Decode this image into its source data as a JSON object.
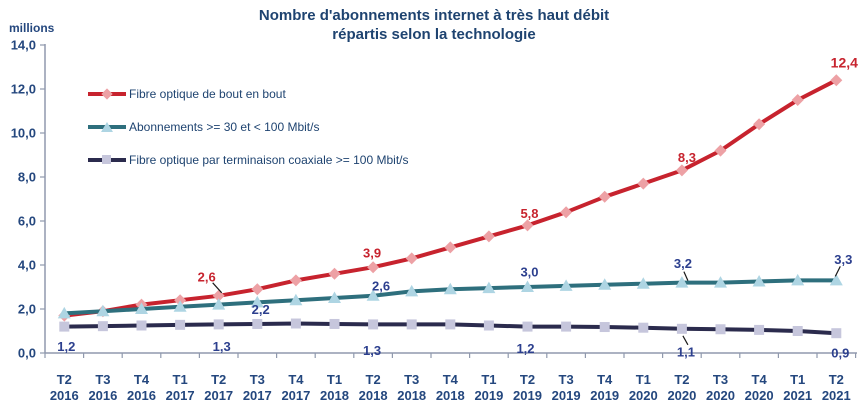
{
  "page": {
    "background": "#ffffff"
  },
  "chart_data": {
    "type": "line",
    "title": "Nombre d'abonnements internet à très haut débit\nrépartis selon la technologie",
    "title_color": "#1e4370",
    "axis_color": "#9099ad",
    "tick_label_color": "#24477e",
    "legend_text_color": "#1e4370",
    "leader_line_color": "#1a1a1a",
    "legend_position": "top-left-inside",
    "grid": false,
    "y_axis": {
      "label": "millions",
      "min": 0,
      "max": 14,
      "tick_step": 2,
      "ticks": [
        "0,0",
        "2,0",
        "4,0",
        "6,0",
        "8,0",
        "10,0",
        "12,0",
        "14,0"
      ]
    },
    "x_axis": {
      "categories": [
        {
          "quarter": "T2",
          "year": "2016"
        },
        {
          "quarter": "T3",
          "year": "2016"
        },
        {
          "quarter": "T4",
          "year": "2016"
        },
        {
          "quarter": "T1",
          "year": "2017"
        },
        {
          "quarter": "T2",
          "year": "2017"
        },
        {
          "quarter": "T3",
          "year": "2017"
        },
        {
          "quarter": "T4",
          "year": "2017"
        },
        {
          "quarter": "T1",
          "year": "2018"
        },
        {
          "quarter": "T2",
          "year": "2018"
        },
        {
          "quarter": "T3",
          "year": "2018"
        },
        {
          "quarter": "T4",
          "year": "2018"
        },
        {
          "quarter": "T1",
          "year": "2019"
        },
        {
          "quarter": "T2",
          "year": "2019"
        },
        {
          "quarter": "T3",
          "year": "2019"
        },
        {
          "quarter": "T4",
          "year": "2019"
        },
        {
          "quarter": "T1",
          "year": "2020"
        },
        {
          "quarter": "T2",
          "year": "2020"
        },
        {
          "quarter": "T3",
          "year": "2020"
        },
        {
          "quarter": "T4",
          "year": "2020"
        },
        {
          "quarter": "T1",
          "year": "2021"
        },
        {
          "quarter": "T2",
          "year": "2021"
        }
      ]
    },
    "series": [
      {
        "name": "Fibre optique de bout en bout",
        "line_color": "#c7232e",
        "marker": "diamond",
        "marker_color": "#eda1a5",
        "label_color": "#c7232e",
        "values": [
          1.7,
          1.9,
          2.2,
          2.4,
          2.6,
          2.9,
          3.3,
          3.6,
          3.9,
          4.3,
          4.8,
          5.3,
          5.8,
          6.4,
          7.1,
          7.7,
          8.3,
          9.2,
          10.4,
          11.5,
          12.4
        ],
        "point_labels": [
          {
            "index": 4,
            "text": "2,6",
            "dx": -12,
            "dy": -19,
            "leader": [
              -6,
              -13,
              3,
              -3
            ]
          },
          {
            "index": 8,
            "text": "3,9",
            "dx": -1,
            "dy": -14
          },
          {
            "index": 12,
            "text": "5,8",
            "dx": 2,
            "dy": -12
          },
          {
            "index": 16,
            "text": "8,3",
            "dx": 5,
            "dy": -13
          },
          {
            "index": 20,
            "text": "12,4",
            "dx": 8,
            "dy": -17,
            "size": 14
          }
        ]
      },
      {
        "name": "Abonnements >= 30 et < 100 Mbit/s",
        "line_color": "#2e6f7d",
        "marker": "triangle",
        "marker_color": "#aed5e3",
        "label_color": "#2c3f8e",
        "values": [
          1.8,
          1.9,
          2.0,
          2.1,
          2.2,
          2.3,
          2.4,
          2.5,
          2.6,
          2.8,
          2.9,
          2.95,
          3.0,
          3.05,
          3.1,
          3.15,
          3.2,
          3.2,
          3.25,
          3.3,
          3.3
        ],
        "point_labels": [
          {
            "index": 4,
            "text": "2,2",
            "dx": 42,
            "dy": 5
          },
          {
            "index": 8,
            "text": "2,6",
            "dx": 8,
            "dy": -10
          },
          {
            "index": 12,
            "text": "3,0",
            "dx": 2,
            "dy": -15
          },
          {
            "index": 16,
            "text": "3,2",
            "dx": 1,
            "dy": -19,
            "leader": [
              2,
              -11,
              6,
              -2
            ]
          },
          {
            "index": 20,
            "text": "3,3",
            "dx": 7,
            "dy": -21,
            "leader": [
              4,
              -14,
              -1,
              -4
            ]
          }
        ]
      },
      {
        "name": "Fibre optique par terminaison coaxiale >= 100 Mbit/s",
        "line_color": "#2b2b4d",
        "marker": "square",
        "marker_color": "#c6c6dc",
        "label_color": "#2c3f8e",
        "values": [
          1.2,
          1.22,
          1.25,
          1.28,
          1.3,
          1.32,
          1.34,
          1.32,
          1.3,
          1.3,
          1.3,
          1.25,
          1.2,
          1.2,
          1.18,
          1.15,
          1.1,
          1.08,
          1.05,
          1.0,
          0.9
        ],
        "point_labels": [
          {
            "index": 0,
            "text": "1,2",
            "dx": 2,
            "dy": 20
          },
          {
            "index": 4,
            "text": "1,3",
            "dx": 3,
            "dy": 22
          },
          {
            "index": 8,
            "text": "1,3",
            "dx": -1,
            "dy": 26
          },
          {
            "index": 12,
            "text": "1,2",
            "dx": -2,
            "dy": 22
          },
          {
            "index": 16,
            "text": "1,1",
            "dx": 4,
            "dy": 23,
            "leader": [
              1,
              7,
              6,
              16
            ]
          },
          {
            "index": 20,
            "text": "0,9",
            "dx": 4,
            "dy": 20
          }
        ]
      }
    ]
  }
}
